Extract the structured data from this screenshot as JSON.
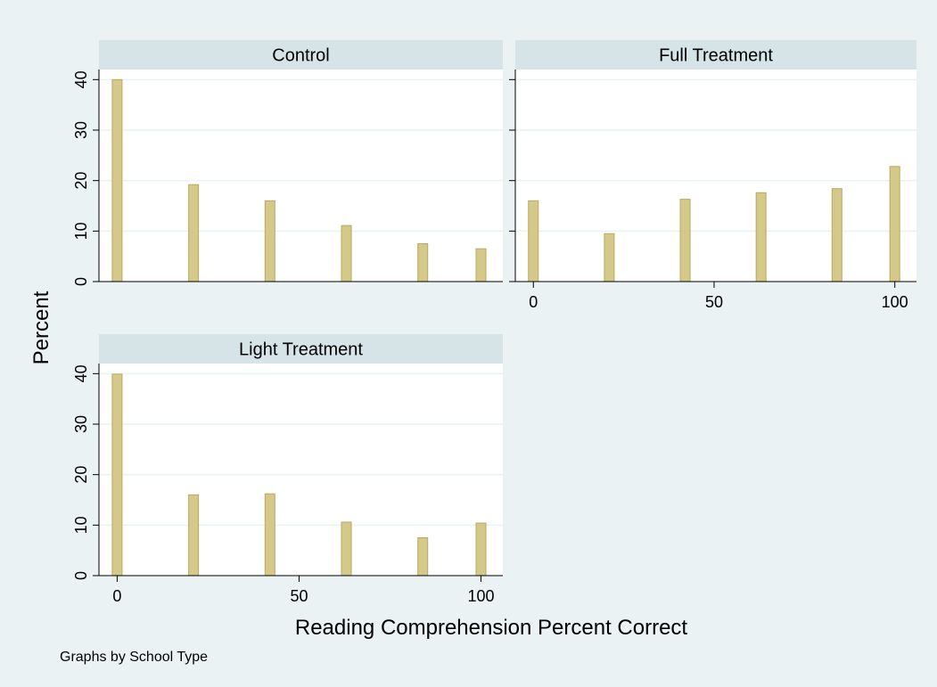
{
  "colors": {
    "background": "#eaf2f3",
    "panel_bg": "#ffffff",
    "strip_bg": "#d6e4e7",
    "grid": "#eaf2f3",
    "bar_fill": "#d5c98a",
    "bar_edge": "#b8a862",
    "axis": "#000000"
  },
  "chart_data": {
    "type": "bar",
    "xlabel": "Reading Comprehension Percent Correct",
    "ylabel": "Percent",
    "note": "Graphs by School Type",
    "xlim": [
      -5,
      106
    ],
    "ylim": [
      0,
      42
    ],
    "xticks": [
      0,
      50,
      100
    ],
    "yticks": [
      0,
      10,
      20,
      30,
      40
    ],
    "x": [
      0,
      21,
      42,
      63,
      84,
      100
    ],
    "grid": true,
    "legend": "none",
    "panels": [
      {
        "name": "Control",
        "values": [
          40,
          19.2,
          16,
          11.1,
          7.5,
          6.5
        ],
        "show_x_axis": false
      },
      {
        "name": "Full Treatment",
        "values": [
          16,
          9.5,
          16.3,
          17.6,
          18.4,
          22.8
        ],
        "show_x_axis": true
      },
      {
        "name": "Light Treatment",
        "values": [
          39.9,
          16,
          16.2,
          10.6,
          7.5,
          10.4
        ],
        "show_x_axis": true
      }
    ]
  }
}
